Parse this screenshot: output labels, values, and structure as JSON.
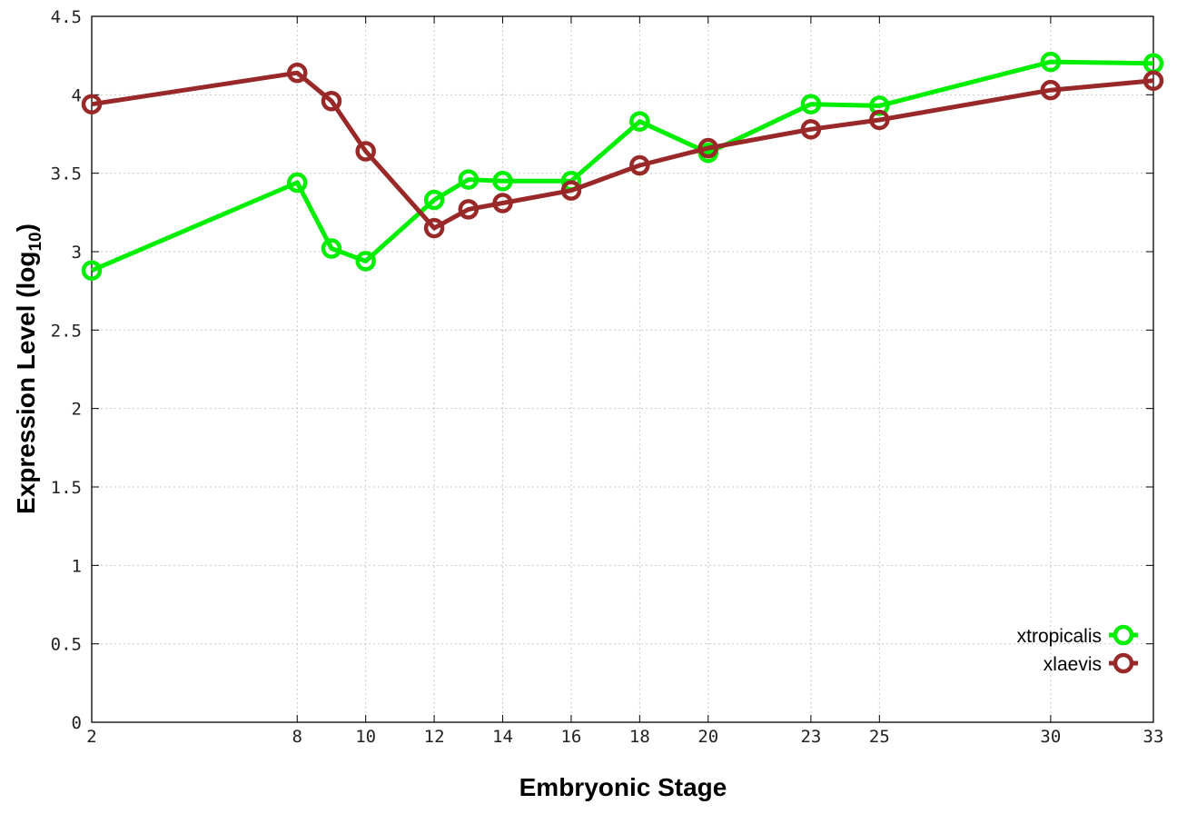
{
  "chart_data": {
    "type": "line",
    "title": "",
    "xlabel": "Embryonic Stage",
    "ylabel": "Expression Level (log",
    "ylabel_subscript": "10",
    "ylabel_suffix": ")",
    "xlim": [
      2,
      33
    ],
    "ylim": [
      0,
      4.5
    ],
    "x_ticks": [
      2,
      8,
      10,
      12,
      14,
      16,
      18,
      20,
      23,
      25,
      30,
      33
    ],
    "y_ticks": [
      0,
      0.5,
      1,
      1.5,
      2,
      2.5,
      3,
      3.5,
      4,
      4.5
    ],
    "y_tick_labels": [
      "0",
      "0.5",
      "1",
      "1.5",
      "2",
      "2.5",
      "3",
      "3.5",
      "4",
      "4.5"
    ],
    "grid": true,
    "legend_position": "bottom-right",
    "series": [
      {
        "name": "xtropicalis",
        "color": "#00ee00",
        "x": [
          2,
          8,
          9,
          10,
          12,
          13,
          14,
          16,
          18,
          20,
          23,
          25,
          30,
          33
        ],
        "values": [
          2.88,
          3.44,
          3.02,
          2.94,
          3.33,
          3.46,
          3.45,
          3.45,
          3.83,
          3.63,
          3.94,
          3.93,
          4.21,
          4.2
        ]
      },
      {
        "name": "xlaevis",
        "color": "#992929",
        "x": [
          2,
          8,
          9,
          10,
          12,
          13,
          14,
          16,
          18,
          20,
          23,
          25,
          30,
          33
        ],
        "values": [
          3.94,
          4.14,
          3.96,
          3.64,
          3.15,
          3.27,
          3.31,
          3.39,
          3.55,
          3.66,
          3.78,
          3.84,
          4.03,
          4.09
        ]
      }
    ]
  }
}
